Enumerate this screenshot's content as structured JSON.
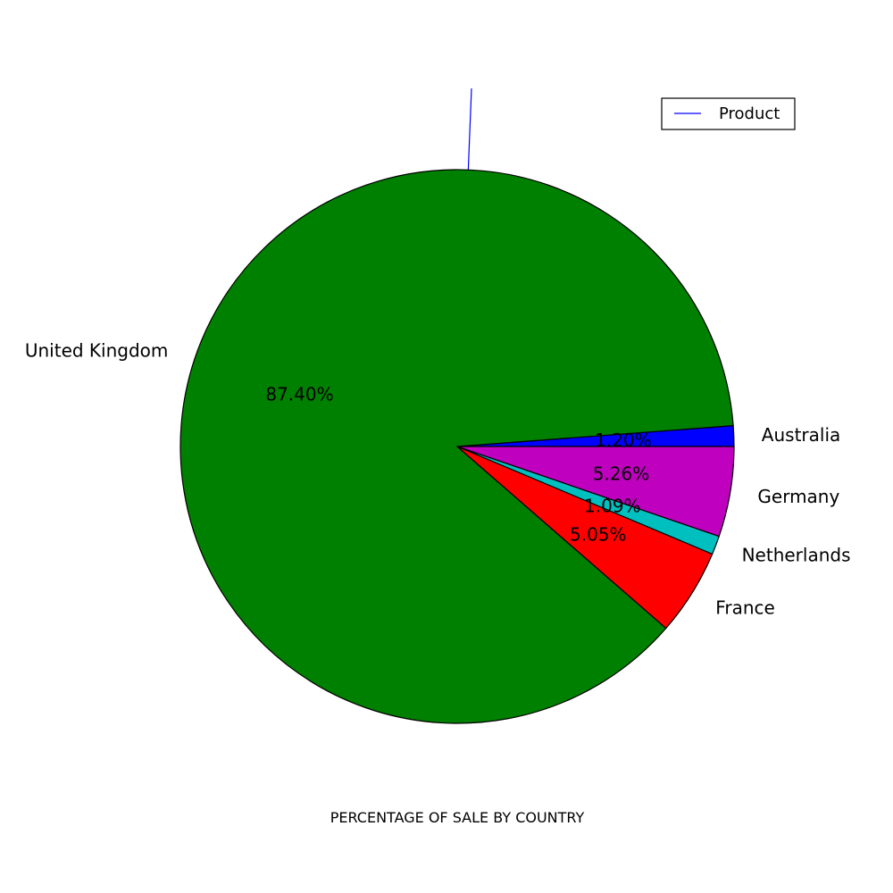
{
  "chart_data": {
    "type": "pie",
    "xlabel": "PERCENTAGE OF SALE BY COUNTRY",
    "legend": {
      "placement": "top-right",
      "label": "Product",
      "color": "#0000ff"
    },
    "start_angle_deg": 0,
    "direction": "counterclockwise",
    "slices": [
      {
        "label": "Australia",
        "value": 1.2,
        "display": "1.20%",
        "color": "#0000ff"
      },
      {
        "label": "United Kingdom",
        "value": 87.4,
        "display": "87.40%",
        "color": "#008000"
      },
      {
        "label": "France",
        "value": 5.05,
        "display": "5.05%",
        "color": "#ff0000"
      },
      {
        "label": "Netherlands",
        "value": 1.09,
        "display": "1.09%",
        "color": "#00bfbf"
      },
      {
        "label": "Germany",
        "value": 5.26,
        "display": "5.26%",
        "color": "#bf00bf"
      }
    ]
  }
}
